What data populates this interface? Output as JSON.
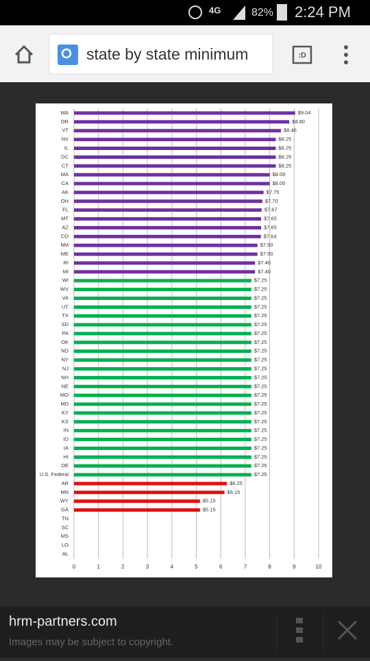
{
  "status_bar": {
    "network": "4G",
    "battery": "82%",
    "time": "2:24 PM"
  },
  "address_bar": {
    "query": "state by state minimum",
    "tabs_icon": ":D"
  },
  "chart_data": {
    "type": "hbar",
    "categories": [
      "WA",
      "OR",
      "VT",
      "NV",
      "IL",
      "DC",
      "CT",
      "MA",
      "CA",
      "AK",
      "OH",
      "FL",
      "MT",
      "AZ",
      "CO",
      "NM",
      "ME",
      "RI",
      "MI",
      "WI",
      "WV",
      "VA",
      "UT",
      "TX",
      "SD",
      "PA",
      "OK",
      "ND",
      "NY",
      "NJ",
      "NH",
      "NE",
      "MO",
      "MD",
      "KY",
      "KS",
      "IN",
      "ID",
      "IA",
      "HI",
      "DE",
      "U.S. Federal",
      "AR",
      "MN",
      "WY",
      "GA",
      "TN",
      "SC",
      "MS",
      "LO",
      "AL"
    ],
    "values": [
      9.04,
      8.8,
      8.46,
      8.25,
      8.25,
      8.25,
      8.25,
      8.0,
      8.0,
      7.75,
      7.7,
      7.67,
      7.65,
      7.65,
      7.64,
      7.5,
      7.5,
      7.4,
      7.4,
      7.25,
      7.25,
      7.25,
      7.25,
      7.25,
      7.25,
      7.25,
      7.25,
      7.25,
      7.25,
      7.25,
      7.25,
      7.25,
      7.25,
      7.25,
      7.25,
      7.25,
      7.25,
      7.25,
      7.25,
      7.25,
      7.25,
      7.25,
      6.25,
      6.15,
      5.15,
      5.15,
      null,
      null,
      null,
      null,
      null
    ],
    "value_labels": [
      "$9.04",
      "$8.80",
      "$8.46",
      "$8.25",
      "$8.25",
      "$8.25",
      "$8.25",
      "$8.00",
      "$8.00",
      "$7.75",
      "$7.70",
      "$7.67",
      "$7.65",
      "$7.65",
      "$7.64",
      "$7.50",
      "$7.50",
      "$7.40",
      "$7.40",
      "$7.25",
      "$7.25",
      "$7.25",
      "$7.25",
      "$7.25",
      "$7.25",
      "$7.25",
      "$7.25",
      "$7.25",
      "$7.25",
      "$7.25",
      "$7.25",
      "$7.25",
      "$7.25",
      "$7.25",
      "$7.25",
      "$7.25",
      "$7.25",
      "$7.25",
      "$7.25",
      "$7.25",
      "$7.25",
      "$7.25",
      "$6.25",
      "$6.15",
      "$5.15",
      "$5.15",
      null,
      null,
      null,
      null,
      null
    ],
    "colors": [
      "#7030a0",
      "#7030a0",
      "#7030a0",
      "#7030a0",
      "#7030a0",
      "#7030a0",
      "#7030a0",
      "#7030a0",
      "#7030a0",
      "#7030a0",
      "#7030a0",
      "#7030a0",
      "#7030a0",
      "#7030a0",
      "#7030a0",
      "#7030a0",
      "#7030a0",
      "#7030a0",
      "#7030a0",
      "#00b050",
      "#00b050",
      "#00b050",
      "#00b050",
      "#00b050",
      "#00b050",
      "#00b050",
      "#00b050",
      "#00b050",
      "#00b050",
      "#00b050",
      "#00b050",
      "#00b050",
      "#00b050",
      "#00b050",
      "#00b050",
      "#00b050",
      "#00b050",
      "#00b050",
      "#00b050",
      "#00b050",
      "#00b050",
      "#00b050",
      "#e01010",
      "#e01010",
      "#e01010",
      "#e01010",
      null,
      null,
      null,
      null,
      null
    ],
    "xlim": [
      0,
      10
    ],
    "xticks": [
      0,
      1,
      2,
      3,
      4,
      5,
      6,
      7,
      8,
      9,
      10
    ],
    "grid": true
  },
  "footer": {
    "source": "hrm-partners.com",
    "note": "Images may be subject to copyright."
  }
}
